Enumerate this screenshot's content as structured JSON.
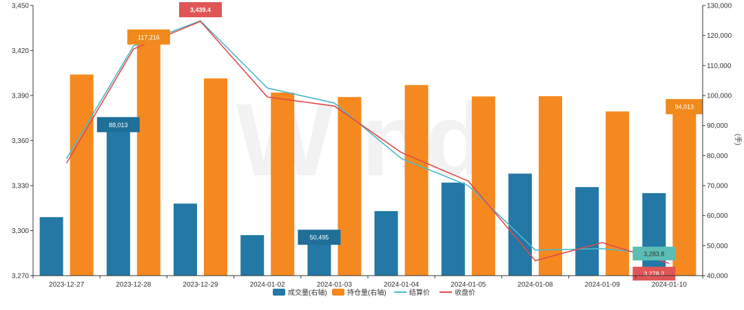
{
  "chart_data": {
    "type": "bar",
    "watermark": "Wind",
    "categories": [
      "2023-12-27",
      "2023-12-28",
      "2023-12-29",
      "2024-01-02",
      "2024-01-03",
      "2024-01-04",
      "2024-01-05",
      "2024-01-08",
      "2024-01-09",
      "2024-01-10"
    ],
    "left_axis": {
      "ylim": [
        3270,
        3450
      ],
      "ticks": [
        "3,270",
        "3,300",
        "3,330",
        "3,360",
        "3,390",
        "3,420",
        "3,450"
      ]
    },
    "right_axis": {
      "label": "(手)",
      "ylim": [
        40000,
        130000
      ],
      "ticks": [
        "40,000",
        "50,000",
        "60,000",
        "70,000",
        "80,000",
        "90,000",
        "100,000",
        "110,000",
        "120,000",
        "130,000"
      ]
    },
    "series": [
      {
        "name": "成交量(右轴)",
        "kind": "bar",
        "axis": "right",
        "color": "#2378a5",
        "values": [
          59500,
          88013,
          64000,
          53500,
          50495,
          61500,
          71000,
          74000,
          69500,
          67500
        ]
      },
      {
        "name": "持仓量(右轴)",
        "kind": "bar",
        "axis": "right",
        "color": "#f5891f",
        "values": [
          107000,
          117216,
          105700,
          101000,
          99500,
          103500,
          99700,
          99800,
          94700,
          94013
        ]
      },
      {
        "name": "结算价",
        "kind": "line",
        "axis": "left",
        "color": "#4ab8cc",
        "values": [
          3348,
          3423,
          3439.8,
          3395,
          3385,
          3348,
          3330,
          3287,
          3288,
          3283.8
        ]
      },
      {
        "name": "收盘价",
        "kind": "line",
        "axis": "left",
        "color": "#e04a4a",
        "values": [
          3345,
          3421,
          3439.4,
          3389,
          3383,
          3352,
          3333,
          3280,
          3292,
          3278.2
        ]
      }
    ],
    "annotations": [
      {
        "series": "成交量(右轴)",
        "index": 1,
        "text": "88,013"
      },
      {
        "series": "成交量(右轴)",
        "index": 4,
        "text": "50,495"
      },
      {
        "series": "持仓量(右轴)",
        "index": 1,
        "text": "117,216"
      },
      {
        "series": "持仓量(右轴)",
        "index": 9,
        "text": "94,013"
      },
      {
        "series": "收盘价",
        "index": 2,
        "text": "3,439.4"
      },
      {
        "series": "结算价",
        "index": 9,
        "text": "3,283.8"
      },
      {
        "series": "收盘价",
        "index": 9,
        "text": "3,278.2"
      }
    ],
    "colors": {
      "label_blue": "#1f6f99",
      "label_orange": "#f08a1c",
      "label_red": "#e05555",
      "label_teal": "#5bbdb5"
    },
    "grid": false,
    "legend": "bottom"
  }
}
